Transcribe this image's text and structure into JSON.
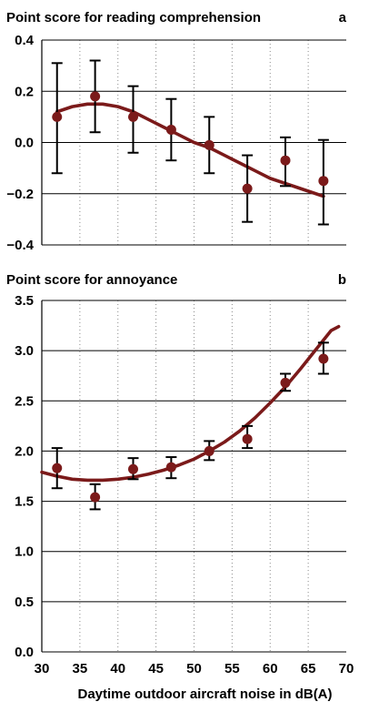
{
  "chart_data": [
    {
      "type": "scatter",
      "panel_label": "a",
      "title": "Point score for reading comprehension",
      "xlabel": "",
      "ylabel": "",
      "xlim": [
        30,
        70
      ],
      "ylim": [
        -0.4,
        0.4
      ],
      "x_ticks": [
        30,
        35,
        40,
        45,
        50,
        55,
        60,
        65,
        70
      ],
      "y_ticks": [
        -0.4,
        -0.2,
        0.0,
        0.2,
        0.4
      ],
      "y_tick_labels": [
        "−0.4",
        "−0.2",
        "0.0",
        "0.2",
        "0.4"
      ],
      "grid": "horizontal solid, vertical dotted",
      "points": [
        {
          "x": 32,
          "y": 0.1,
          "lo": -0.12,
          "hi": 0.31
        },
        {
          "x": 37,
          "y": 0.18,
          "lo": 0.04,
          "hi": 0.32
        },
        {
          "x": 42,
          "y": 0.1,
          "lo": -0.04,
          "hi": 0.22
        },
        {
          "x": 47,
          "y": 0.05,
          "lo": -0.07,
          "hi": 0.17
        },
        {
          "x": 52,
          "y": -0.01,
          "lo": -0.12,
          "hi": 0.1
        },
        {
          "x": 57,
          "y": -0.18,
          "lo": -0.31,
          "hi": -0.05
        },
        {
          "x": 62,
          "y": -0.07,
          "lo": -0.17,
          "hi": 0.02
        },
        {
          "x": 67,
          "y": -0.15,
          "lo": -0.32,
          "hi": 0.01
        }
      ],
      "fit_curve": {
        "x": [
          32,
          34,
          36,
          38,
          40,
          42,
          44,
          46,
          48,
          50,
          52,
          54,
          56,
          58,
          60,
          62,
          64,
          66,
          67
        ],
        "y": [
          0.12,
          0.14,
          0.15,
          0.15,
          0.14,
          0.12,
          0.09,
          0.06,
          0.03,
          0.0,
          -0.02,
          -0.05,
          -0.08,
          -0.11,
          -0.14,
          -0.16,
          -0.18,
          -0.2,
          -0.21
        ]
      },
      "colors": {
        "marker": "#7b1a1a",
        "curve": "#7b1a1a",
        "error_bar": "#000000"
      }
    },
    {
      "type": "scatter",
      "panel_label": "b",
      "title": "Point score for annoyance",
      "xlabel": "Daytime outdoor aircraft noise in dB(A)",
      "ylabel": "",
      "xlim": [
        30,
        70
      ],
      "ylim": [
        0.0,
        3.5
      ],
      "x_ticks": [
        30,
        35,
        40,
        45,
        50,
        55,
        60,
        65,
        70
      ],
      "y_ticks": [
        0.0,
        0.5,
        1.0,
        1.5,
        2.0,
        2.5,
        3.0,
        3.5
      ],
      "y_tick_labels": [
        "0.0",
        "0.5",
        "1.0",
        "1.5",
        "2.0",
        "2.5",
        "3.0",
        "3.5"
      ],
      "grid": "horizontal solid, vertical dotted",
      "points": [
        {
          "x": 32,
          "y": 1.83,
          "lo": 1.63,
          "hi": 2.03
        },
        {
          "x": 37,
          "y": 1.54,
          "lo": 1.42,
          "hi": 1.67
        },
        {
          "x": 42,
          "y": 1.82,
          "lo": 1.72,
          "hi": 1.93
        },
        {
          "x": 47,
          "y": 1.84,
          "lo": 1.73,
          "hi": 1.94
        },
        {
          "x": 52,
          "y": 2.0,
          "lo": 1.91,
          "hi": 2.1
        },
        {
          "x": 57,
          "y": 2.12,
          "lo": 2.03,
          "hi": 2.25
        },
        {
          "x": 62,
          "y": 2.68,
          "lo": 2.6,
          "hi": 2.77
        },
        {
          "x": 67,
          "y": 2.92,
          "lo": 2.77,
          "hi": 3.08
        }
      ],
      "fit_curve": {
        "x": [
          30,
          32,
          34,
          36,
          38,
          40,
          42,
          44,
          46,
          48,
          50,
          52,
          54,
          56,
          58,
          60,
          62,
          64,
          66,
          68,
          69
        ],
        "y": [
          1.79,
          1.75,
          1.72,
          1.71,
          1.71,
          1.72,
          1.74,
          1.77,
          1.81,
          1.86,
          1.92,
          2.0,
          2.09,
          2.2,
          2.33,
          2.48,
          2.64,
          2.82,
          3.01,
          3.2,
          3.24
        ]
      },
      "colors": {
        "marker": "#7b1a1a",
        "curve": "#7b1a1a",
        "error_bar": "#000000"
      }
    }
  ]
}
